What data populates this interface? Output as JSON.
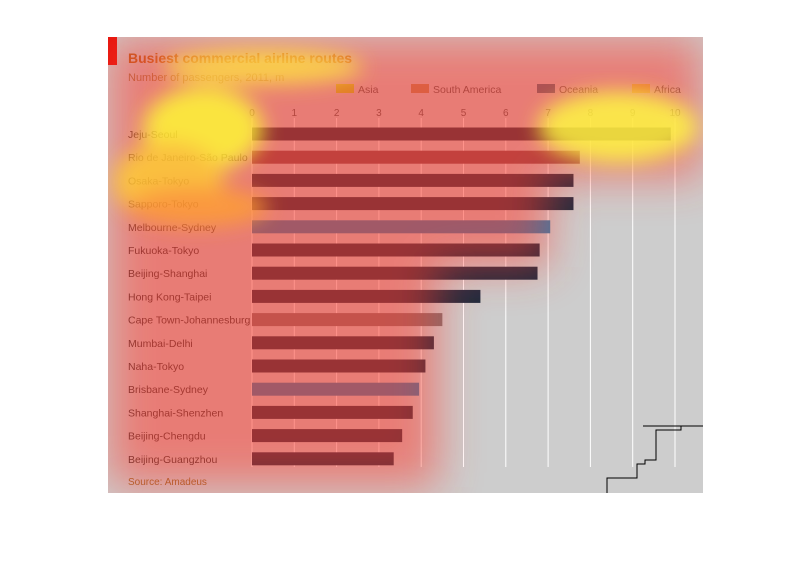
{
  "chart_data": {
    "type": "bar",
    "orientation": "horizontal",
    "title": "Busiest commercial airline routes",
    "subtitle": "Number of passengers, 2011, m",
    "source": "Source: Amadeus",
    "xlim": [
      0,
      10
    ],
    "x_ticks": [
      "0",
      "1",
      "2",
      "3",
      "4",
      "5",
      "6",
      "7",
      "8",
      "9",
      "10"
    ],
    "grid": true,
    "legend_position": "top",
    "legend": [
      {
        "name": "Asia",
        "color": "#c0d020"
      },
      {
        "name": "South America",
        "color": "#b58a5a"
      },
      {
        "name": "Oceania",
        "color": "#4a6e80"
      },
      {
        "name": "Africa",
        "color": "#d4c04a"
      }
    ],
    "series_colors": {
      "Asia": "#1d2b3f",
      "South America": "#7a4a50",
      "Oceania": "#2e7fae",
      "Africa": "#7e7070"
    },
    "categories": [
      "Jeju-Seoul",
      "Rio de Janeiro-São Paulo",
      "Osaka-Tokyo",
      "Sapporo-Tokyo",
      "Melbourne-Sydney",
      "Fukuoka-Tokyo",
      "Beijing-Shanghai",
      "Hong Kong-Taipei",
      "Cape Town-Johannesburg",
      "Mumbai-Delhi",
      "Naha-Tokyo",
      "Brisbane-Sydney",
      "Shanghai-Shenzhen",
      "Beijing-Chengdu",
      "Beijing-Guangzhou"
    ],
    "values": [
      9.9,
      7.75,
      7.6,
      7.6,
      7.05,
      6.8,
      6.75,
      5.4,
      4.5,
      4.3,
      4.1,
      3.95,
      3.8,
      3.55,
      3.35
    ],
    "regions": [
      "Asia",
      "South America",
      "Asia",
      "Asia",
      "Oceania",
      "Asia",
      "Asia",
      "Asia",
      "Africa",
      "Asia",
      "Asia",
      "Oceania",
      "Asia",
      "Asia",
      "Asia"
    ]
  }
}
